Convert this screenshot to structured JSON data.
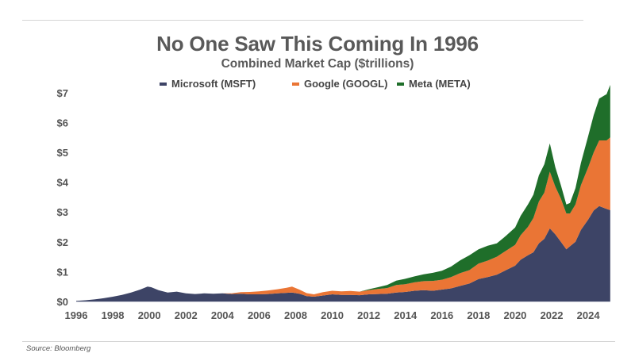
{
  "source": "Source: Bloomberg",
  "chart_data": {
    "type": "area",
    "stacked": true,
    "title": "No One Saw This Coming In 1996",
    "subtitle": "Combined Market Cap ($trillions)",
    "xlabel": "",
    "ylabel": "",
    "xlim": [
      1996,
      2025.3
    ],
    "ylim": [
      0,
      7
    ],
    "grid": false,
    "legend_position": "top",
    "y_ticks": [
      0,
      1,
      2,
      3,
      4,
      5,
      6,
      7
    ],
    "y_tick_labels": [
      "$0",
      "$1",
      "$2",
      "$3",
      "$4",
      "$5",
      "$6",
      "$7"
    ],
    "x_ticks": [
      1996,
      1998,
      2000,
      2002,
      2004,
      2006,
      2008,
      2010,
      2012,
      2014,
      2016,
      2018,
      2020,
      2022,
      2024
    ],
    "x_tick_labels": [
      "1996",
      "1998",
      "2000",
      "2002",
      "2004",
      "2006",
      "2008",
      "2010",
      "2012",
      "2014",
      "2016",
      "2018",
      "2020",
      "2022",
      "2024"
    ],
    "x": [
      1996,
      1996.5,
      1997,
      1997.5,
      1998,
      1998.5,
      1999,
      1999.5,
      1999.9,
      2000.1,
      2000.5,
      2001,
      2001.5,
      2002,
      2002.5,
      2003,
      2003.5,
      2004,
      2004.5,
      2005,
      2005.5,
      2006,
      2006.5,
      2007,
      2007.5,
      2007.8,
      2008.2,
      2008.6,
      2009,
      2009.5,
      2010,
      2010.5,
      2011,
      2011.5,
      2012,
      2012.5,
      2013,
      2013.5,
      2014,
      2014.5,
      2015,
      2015.5,
      2016,
      2016.5,
      2017,
      2017.5,
      2018,
      2018.5,
      2019,
      2019.5,
      2020,
      2020.3,
      2020.7,
      2021,
      2021.3,
      2021.6,
      2021.9,
      2022.2,
      2022.5,
      2022.8,
      2023,
      2023.3,
      2023.6,
      2024,
      2024.3,
      2024.6,
      2025,
      2025.2
    ],
    "series": [
      {
        "name": "Microsoft (MSFT)",
        "color": "#3d4466",
        "values": [
          0.02,
          0.04,
          0.07,
          0.11,
          0.16,
          0.22,
          0.3,
          0.4,
          0.5,
          0.48,
          0.38,
          0.3,
          0.33,
          0.27,
          0.25,
          0.27,
          0.26,
          0.27,
          0.25,
          0.26,
          0.24,
          0.24,
          0.25,
          0.27,
          0.29,
          0.3,
          0.26,
          0.18,
          0.16,
          0.2,
          0.24,
          0.22,
          0.22,
          0.21,
          0.24,
          0.25,
          0.26,
          0.3,
          0.32,
          0.36,
          0.38,
          0.36,
          0.4,
          0.44,
          0.52,
          0.6,
          0.75,
          0.82,
          0.9,
          1.05,
          1.2,
          1.4,
          1.55,
          1.65,
          1.95,
          2.1,
          2.45,
          2.25,
          2.0,
          1.75,
          1.85,
          2.0,
          2.4,
          2.75,
          3.05,
          3.2,
          3.1,
          3.06
        ]
      },
      {
        "name": "Google (GOOGL)",
        "color": "#ea7535",
        "values": [
          0,
          0,
          0,
          0,
          0,
          0,
          0,
          0,
          0,
          0,
          0,
          0,
          0,
          0,
          0,
          0,
          0,
          0,
          0.02,
          0.05,
          0.08,
          0.1,
          0.12,
          0.14,
          0.17,
          0.2,
          0.14,
          0.1,
          0.08,
          0.11,
          0.12,
          0.12,
          0.13,
          0.12,
          0.14,
          0.17,
          0.19,
          0.25,
          0.26,
          0.28,
          0.3,
          0.33,
          0.33,
          0.38,
          0.43,
          0.45,
          0.52,
          0.55,
          0.6,
          0.65,
          0.7,
          0.82,
          0.95,
          1.15,
          1.4,
          1.55,
          1.9,
          1.6,
          1.45,
          1.2,
          1.1,
          1.25,
          1.5,
          1.75,
          1.95,
          2.2,
          2.3,
          2.44
        ]
      },
      {
        "name": "Meta (META)",
        "color": "#1f6e2a",
        "values": [
          0,
          0,
          0,
          0,
          0,
          0,
          0,
          0,
          0,
          0,
          0,
          0,
          0,
          0,
          0,
          0,
          0,
          0,
          0,
          0,
          0,
          0,
          0,
          0,
          0,
          0,
          0,
          0,
          0,
          0,
          0,
          0,
          0,
          0,
          0.03,
          0.06,
          0.1,
          0.15,
          0.18,
          0.2,
          0.23,
          0.27,
          0.3,
          0.35,
          0.43,
          0.5,
          0.48,
          0.5,
          0.45,
          0.5,
          0.58,
          0.65,
          0.75,
          0.78,
          0.88,
          0.95,
          0.95,
          0.65,
          0.45,
          0.3,
          0.35,
          0.55,
          0.75,
          1.05,
          1.25,
          1.4,
          1.55,
          1.76
        ]
      }
    ]
  }
}
